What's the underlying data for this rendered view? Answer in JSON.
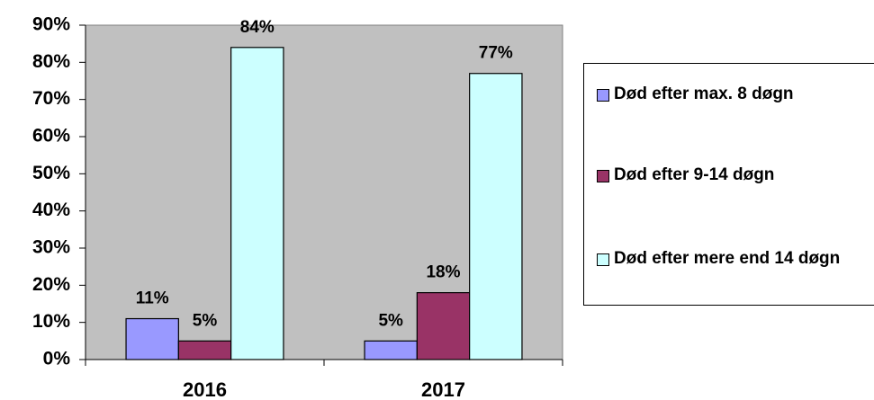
{
  "chart_data": {
    "type": "bar",
    "categories": [
      "2016",
      "2017"
    ],
    "series": [
      {
        "name": "Død efter max. 8 døgn",
        "color": "#9999ff",
        "values": [
          11,
          5
        ],
        "value_labels": [
          "11%",
          "5%"
        ]
      },
      {
        "name": "Død efter 9-14 døgn",
        "color": "#993366",
        "values": [
          5,
          18
        ],
        "value_labels": [
          "5%",
          "18%"
        ]
      },
      {
        "name": "Død efter mere end 14 døgn",
        "color": "#ccffff",
        "values": [
          84,
          77
        ],
        "value_labels": [
          "84%",
          "77%"
        ]
      }
    ],
    "ylim": [
      0,
      90
    ],
    "yticks": [
      {
        "value": 0,
        "label": "0%"
      },
      {
        "value": 10,
        "label": "10%"
      },
      {
        "value": 20,
        "label": "20%"
      },
      {
        "value": 30,
        "label": "30%"
      },
      {
        "value": 40,
        "label": "40%"
      },
      {
        "value": 50,
        "label": "50%"
      },
      {
        "value": 60,
        "label": "60%"
      },
      {
        "value": 70,
        "label": "70%"
      },
      {
        "value": 80,
        "label": "80%"
      },
      {
        "value": 90,
        "label": "90%"
      }
    ],
    "plot_background": "#c0c0c0",
    "legend": "right"
  }
}
